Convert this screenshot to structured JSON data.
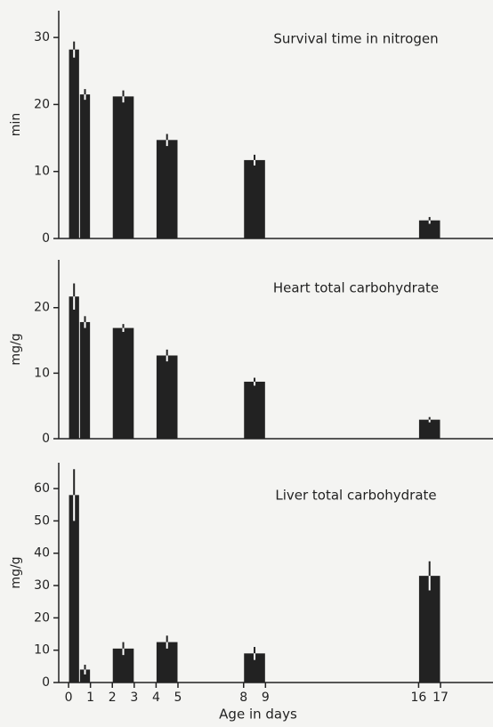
{
  "chart_data": [
    {
      "type": "bar",
      "title": "Survival time in nitrogen",
      "ylabel": "min",
      "x": [
        0.25,
        0.75,
        2.5,
        4.5,
        8.5,
        16.5
      ],
      "values": [
        28.2,
        21.5,
        21.2,
        14.7,
        11.7,
        2.7
      ],
      "errors": [
        1.2,
        0.8,
        0.9,
        0.9,
        0.8,
        0.5
      ],
      "color": "#222222",
      "xlim": [
        -0.45,
        19.4
      ],
      "ylim": [
        0,
        34
      ],
      "yticks": [
        0,
        10,
        20,
        30
      ]
    },
    {
      "type": "bar",
      "title": "Heart total carbohydrate",
      "ylabel": "mg/g",
      "x": [
        0.25,
        0.75,
        2.5,
        4.5,
        8.5,
        16.5
      ],
      "values": [
        21.7,
        17.8,
        16.9,
        12.7,
        8.7,
        2.9
      ],
      "errors": [
        2,
        0.9,
        0.6,
        0.9,
        0.6,
        0.4
      ],
      "color": "#222222",
      "xlim": [
        -0.45,
        19.4
      ],
      "ylim": [
        0,
        27.3
      ],
      "yticks": [
        0,
        10,
        20
      ]
    },
    {
      "type": "bar",
      "title": "Liver total carbohydrate",
      "ylabel": "mg/g",
      "xlabel": "Age in days",
      "x": [
        0.25,
        0.75,
        2.5,
        4.5,
        8.5,
        16.5
      ],
      "values": [
        58,
        4,
        10.5,
        12.5,
        9,
        33
      ],
      "errors": [
        8,
        1.5,
        2,
        2,
        2,
        4.5
      ],
      "color": "#222222",
      "xlim": [
        -0.45,
        19.4
      ],
      "ylim": [
        0,
        68
      ],
      "yticks": [
        0,
        10,
        20,
        30,
        40,
        50,
        60
      ],
      "xticks": [
        0,
        1,
        2,
        3,
        4,
        5,
        8,
        9,
        16,
        17
      ]
    }
  ]
}
